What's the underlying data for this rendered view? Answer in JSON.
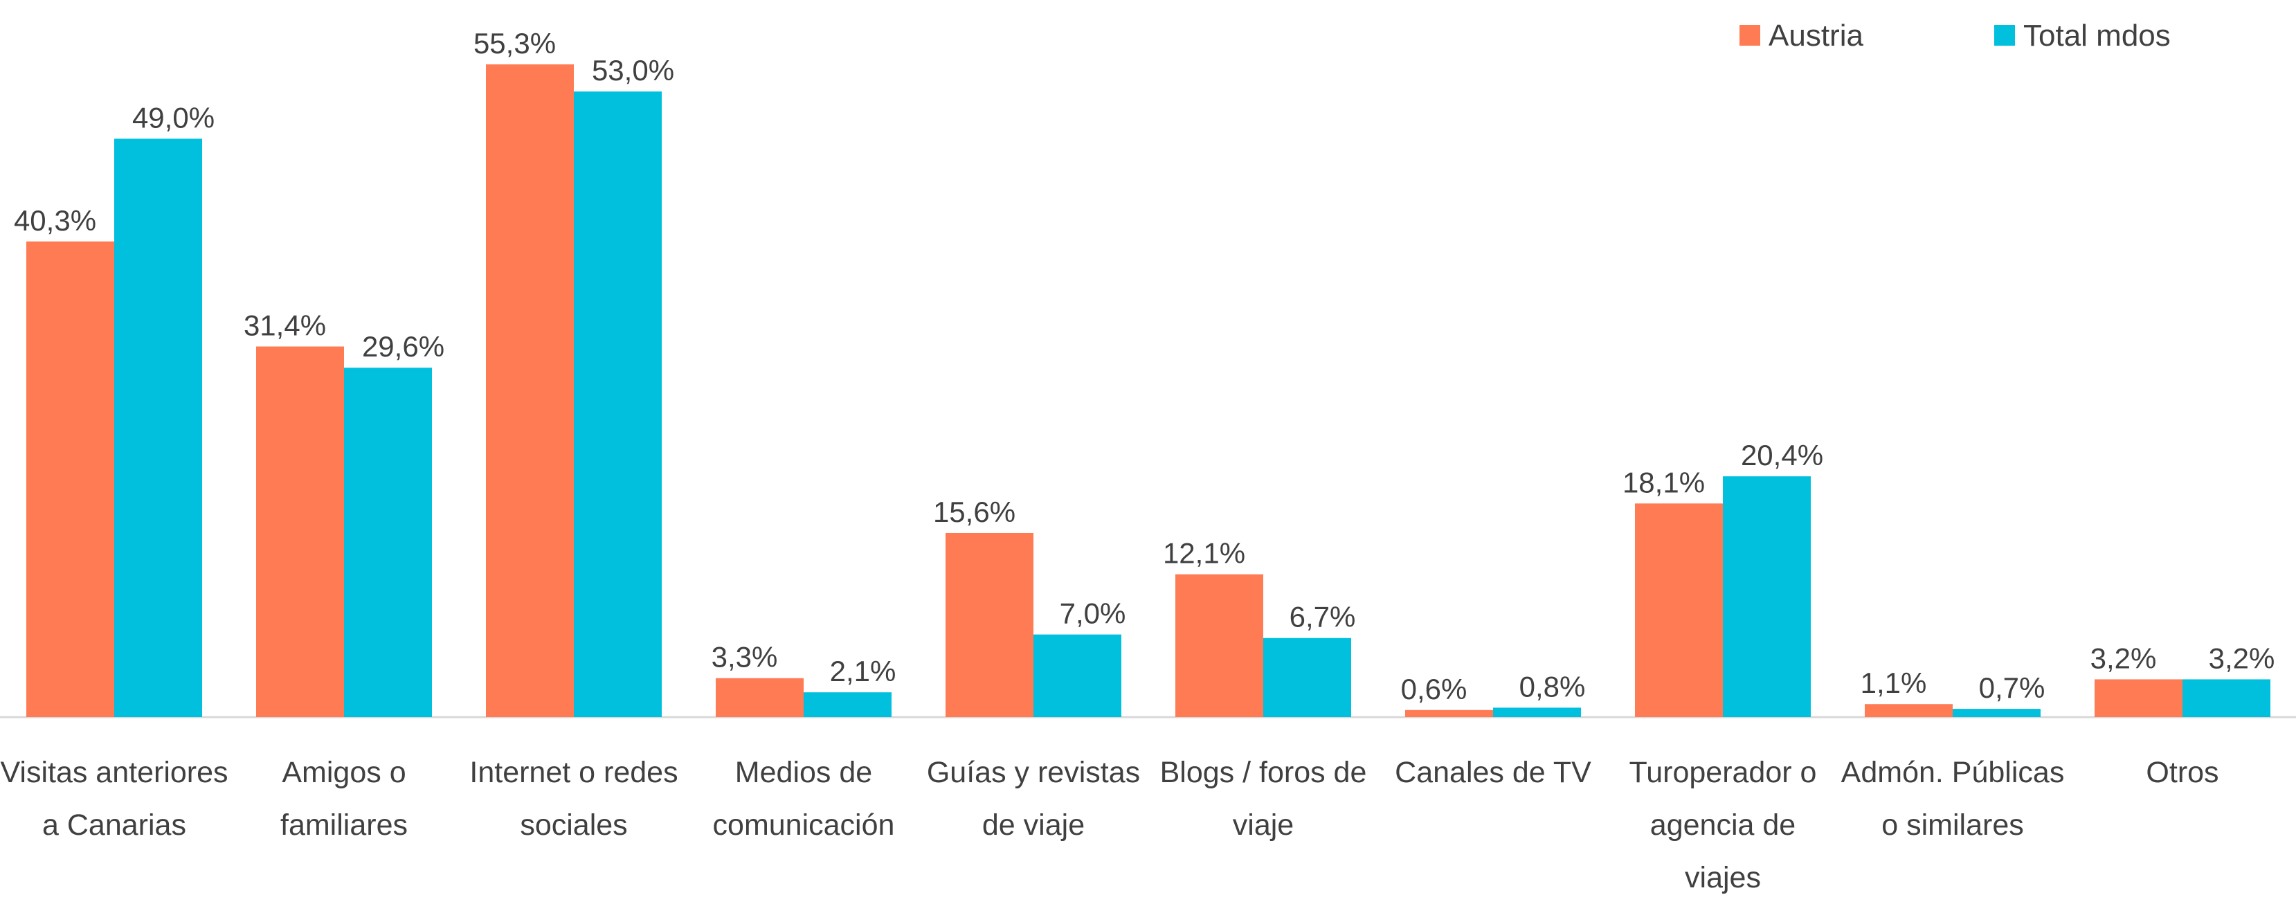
{
  "chart_data": {
    "type": "bar",
    "categories": [
      "Visitas anteriores a Canarias",
      "Amigos o familiares",
      "Internet o redes sociales",
      "Medios de comunicación",
      "Guías y revistas de viaje",
      "Blogs / foros de viaje",
      "Canales de TV",
      "Turoperador o agencia de viajes",
      "Admón. Públicas o similares",
      "Otros"
    ],
    "series": [
      {
        "name": "Austria",
        "color": "#ff7b54",
        "values": [
          40.3,
          31.4,
          55.3,
          3.3,
          15.6,
          12.1,
          0.6,
          18.1,
          1.1,
          3.2
        ],
        "value_labels": [
          "40,3%",
          "31,4%",
          "55,3%",
          "3,3%",
          "15,6%",
          "12,1%",
          "0,6%",
          "18,1%",
          "1,1%",
          "3,2%"
        ]
      },
      {
        "name": "Total mdos",
        "color": "#00c0de",
        "values": [
          49.0,
          29.6,
          53.0,
          2.1,
          7.0,
          6.7,
          0.8,
          20.4,
          0.7,
          3.2
        ],
        "value_labels": [
          "49,0%",
          "29,6%",
          "53,0%",
          "2,1%",
          "7,0%",
          "6,7%",
          "0,8%",
          "20,4%",
          "0,7%",
          "3,2%"
        ]
      }
    ],
    "legend": "top-right"
  }
}
